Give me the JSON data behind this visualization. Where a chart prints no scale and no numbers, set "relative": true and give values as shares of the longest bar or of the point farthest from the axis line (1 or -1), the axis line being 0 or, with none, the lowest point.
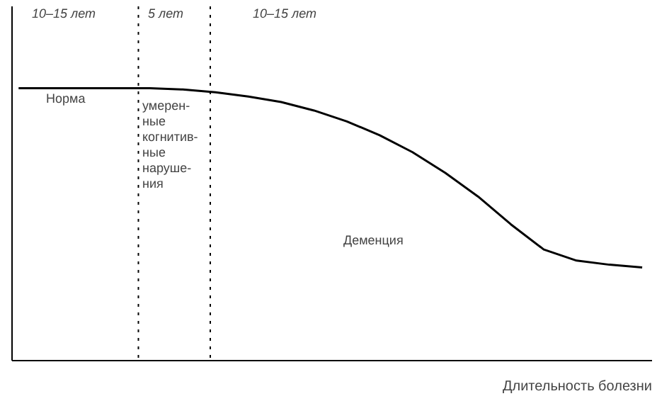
{
  "chart_data": {
    "type": "line",
    "relative": true,
    "xlabel": "Длительность болезни",
    "categories": [
      null,
      null,
      null,
      null,
      null,
      null,
      null,
      null,
      null,
      null,
      null,
      null,
      null,
      null,
      null,
      null,
      null,
      null,
      null,
      null
    ],
    "values": [
      1,
      1,
      1,
      1,
      1,
      0.995,
      0.985,
      0.969,
      0.949,
      0.918,
      0.878,
      0.827,
      0.765,
      0.689,
      0.602,
      0.5,
      0.408,
      0.367,
      0.352,
      0.342
    ],
    "color": "#000000",
    "grid": false,
    "line_style": "solid",
    "annotations": [
      "10–15 лет",
      "5 лет",
      "10–15 лет",
      "Норма",
      "умерен-\nные\nкогнитив-\nные\nнаруше-\nния",
      "Деменция"
    ]
  }
}
